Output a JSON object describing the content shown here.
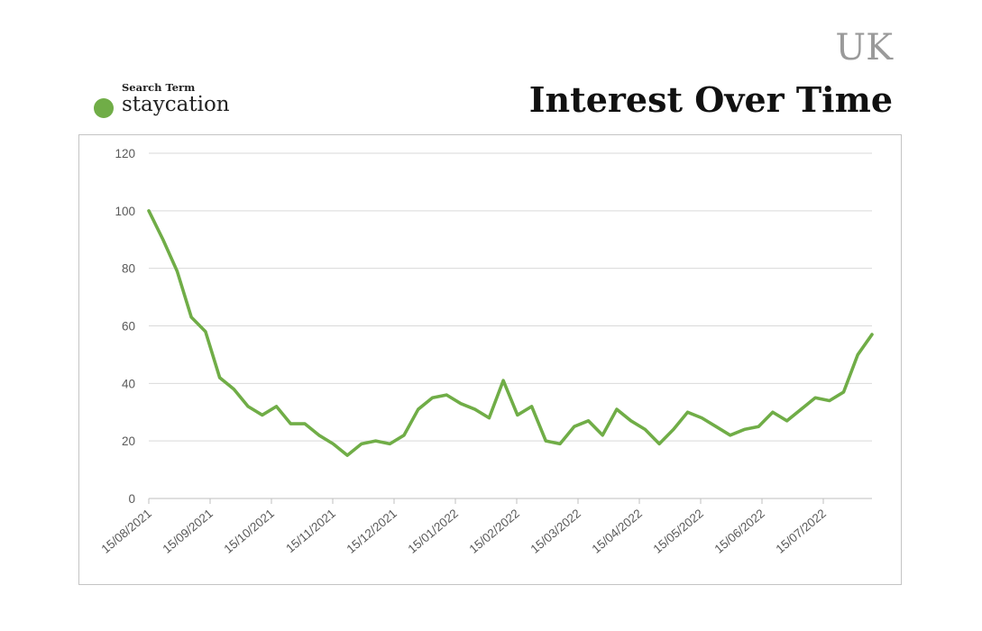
{
  "header": {
    "region": "UK",
    "title": "Interest Over Time"
  },
  "legend": {
    "heading": "Search Term",
    "term": "staycation",
    "color": "#70ad47"
  },
  "chart_data": {
    "type": "line",
    "title": "Interest Over Time",
    "xlabel": "",
    "ylabel": "",
    "ylim": [
      0,
      120
    ],
    "yticks": [
      0,
      20,
      40,
      60,
      80,
      100,
      120
    ],
    "grid": true,
    "legend_position": "top-left",
    "x_tick_labels": [
      "15/08/2021",
      "15/09/2021",
      "15/10/2021",
      "15/11/2021",
      "15/12/2021",
      "15/01/2022",
      "15/02/2022",
      "15/03/2022",
      "15/04/2022",
      "15/05/2022",
      "15/06/2022",
      "15/07/2022"
    ],
    "series": [
      {
        "name": "staycation",
        "color": "#70ad47",
        "values": [
          100,
          90,
          79,
          63,
          58,
          42,
          38,
          32,
          29,
          32,
          26,
          26,
          22,
          19,
          15,
          19,
          20,
          19,
          22,
          31,
          35,
          36,
          33,
          31,
          28,
          41,
          29,
          32,
          20,
          19,
          25,
          27,
          22,
          31,
          27,
          24,
          19,
          24,
          30,
          28,
          25,
          22,
          24,
          25,
          30,
          27,
          31,
          35,
          34,
          37,
          50,
          57
        ]
      }
    ]
  }
}
